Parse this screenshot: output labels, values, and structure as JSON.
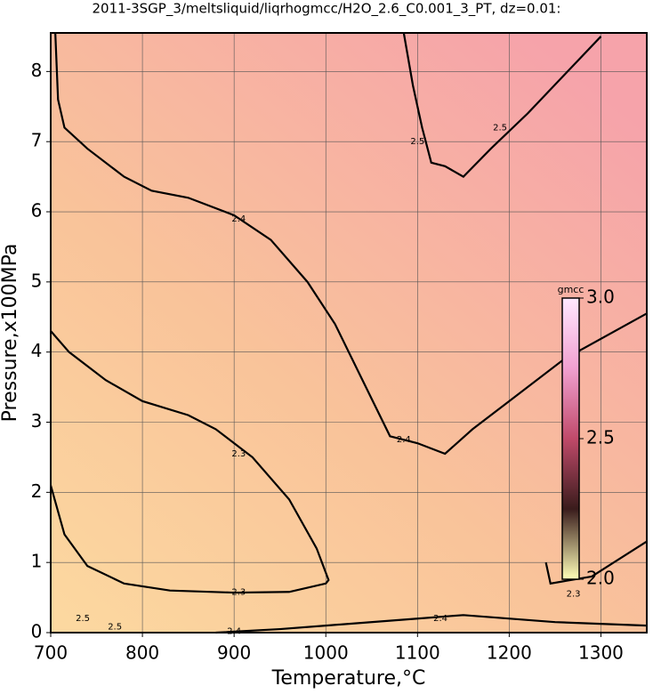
{
  "chart_data": {
    "type": "contour",
    "title": "2011-3SGP_3/meltsliquid/liqrhogmcc/H2O_2.6_C0.001_3_PT, dz=0.01:",
    "xlabel": "Temperature,°C",
    "ylabel": "Pressure,x100MPa",
    "xlim": [
      700,
      1350
    ],
    "ylim": [
      0,
      8.55
    ],
    "xticks": [
      700,
      800,
      900,
      1000,
      1100,
      1200,
      1300
    ],
    "yticks": [
      0,
      1,
      2,
      3,
      4,
      5,
      6,
      7,
      8
    ],
    "grid": true,
    "contours": [
      {
        "level": 2.5,
        "x": [
          1085,
          1095,
          1105,
          1115,
          1130,
          1150,
          1180,
          1220,
          1260,
          1300
        ],
        "y": [
          8.55,
          7.8,
          7.2,
          6.7,
          6.65,
          6.5,
          6.9,
          7.4,
          7.95,
          8.5
        ]
      },
      {
        "level": 2.4,
        "x": [
          705,
          708,
          715,
          740,
          780,
          810,
          850,
          900,
          940,
          980,
          1010,
          1040,
          1070,
          1100,
          1130,
          1160,
          1200,
          1260,
          1350
        ],
        "y": [
          8.55,
          7.6,
          7.2,
          6.9,
          6.5,
          6.3,
          6.2,
          5.95,
          5.6,
          5.0,
          4.4,
          3.6,
          2.8,
          2.7,
          2.55,
          2.9,
          3.3,
          3.9,
          4.55
        ]
      },
      {
        "level": 2.3,
        "x": [
          700,
          720,
          760,
          800,
          850,
          880,
          920,
          960,
          990,
          1003,
          1000,
          960,
          900,
          830,
          780,
          740,
          715,
          700
        ],
        "y": [
          4.3,
          4.0,
          3.6,
          3.3,
          3.1,
          2.9,
          2.5,
          1.9,
          1.2,
          0.75,
          0.7,
          0.58,
          0.57,
          0.6,
          0.7,
          0.95,
          1.4,
          2.1
        ]
      },
      {
        "level": 2.3,
        "x": [
          1240,
          1245,
          1290,
          1350
        ],
        "y": [
          1.0,
          0.7,
          0.8,
          1.3
        ]
      },
      {
        "level": 2.4,
        "x": [
          880,
          950,
          1000,
          1100,
          1150,
          1250,
          1350
        ],
        "y": [
          0.0,
          0.05,
          0.1,
          0.2,
          0.25,
          0.15,
          0.1
        ]
      }
    ],
    "contour_labels": [
      {
        "level": 2.5,
        "x": 1100,
        "y": 7.0
      },
      {
        "level": 2.5,
        "x": 1190,
        "y": 7.2
      },
      {
        "level": 2.4,
        "x": 905,
        "y": 5.9
      },
      {
        "level": 2.4,
        "x": 1085,
        "y": 2.75
      },
      {
        "level": 2.3,
        "x": 905,
        "y": 2.55
      },
      {
        "level": 2.3,
        "x": 905,
        "y": 0.58
      },
      {
        "level": 2.3,
        "x": 1270,
        "y": 0.55
      },
      {
        "level": 2.4,
        "x": 1125,
        "y": 0.2
      },
      {
        "level": 2.4,
        "x": 900,
        "y": 0.02
      },
      {
        "level": 2.5,
        "x": 770,
        "y": 0.08
      },
      {
        "level": 2.5,
        "x": 735,
        "y": 0.2
      }
    ],
    "colorbar": {
      "label": "gmcc",
      "lim": [
        2.0,
        3.0
      ],
      "ticks": [
        {
          "value": 2.0,
          "label": "2.0"
        },
        {
          "value": 2.5,
          "label": "2.5"
        },
        {
          "value": 3.0,
          "label": "3.0"
        }
      ],
      "colors": [
        "#ffffb8",
        "#3a1c1c",
        "#c04a6a",
        "#f0a0d0",
        "#ffe8ff"
      ]
    }
  }
}
